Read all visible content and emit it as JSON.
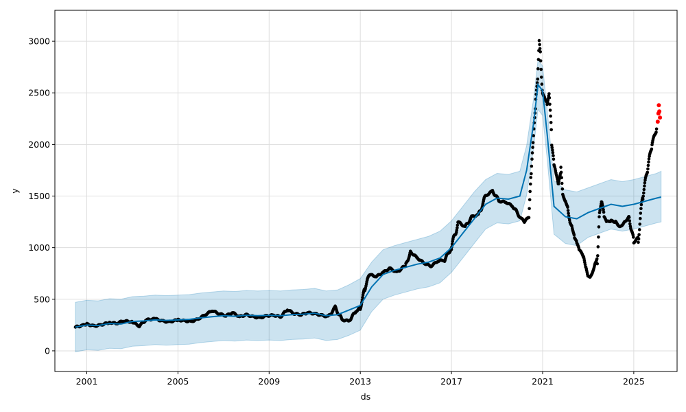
{
  "chart_data": {
    "type": "line",
    "title": "",
    "xlabel": "ds",
    "ylabel": "y",
    "xlim": [
      1999.6,
      2026.9
    ],
    "ylim": [
      -200,
      3300
    ],
    "x_ticks": [
      2001,
      2005,
      2009,
      2013,
      2017,
      2021,
      2025
    ],
    "x_tick_labels": [
      "2001",
      "2005",
      "2009",
      "2013",
      "2017",
      "2021",
      "2025"
    ],
    "y_ticks": [
      0,
      500,
      1000,
      1500,
      2000,
      2500,
      3000
    ],
    "y_tick_labels": [
      "0",
      "500",
      "1000",
      "1500",
      "2000",
      "2500",
      "3000"
    ],
    "grid": true,
    "legend": "none",
    "colors": {
      "observed": "#000000",
      "forecast_line": "#0072B2",
      "uncertainty_band": "#0072B2",
      "recent_points": "#ff0000"
    },
    "series": [
      {
        "role": "forecast_yhat",
        "x": [
          2000.5,
          2001.0,
          2001.5,
          2002.0,
          2002.5,
          2003.0,
          2003.5,
          2004.0,
          2004.5,
          2005.0,
          2005.5,
          2006.0,
          2006.5,
          2007.0,
          2007.5,
          2008.0,
          2008.5,
          2009.0,
          2009.5,
          2010.0,
          2010.5,
          2011.0,
          2011.5,
          2012.0,
          2012.5,
          2013.0,
          2013.5,
          2014.0,
          2014.5,
          2015.0,
          2015.5,
          2016.0,
          2016.5,
          2017.0,
          2017.5,
          2018.0,
          2018.5,
          2019.0,
          2019.5,
          2020.0,
          2020.3,
          2020.6,
          2020.8,
          2021.0,
          2021.2,
          2021.5,
          2022.0,
          2022.5,
          2023.0,
          2023.5,
          2024.0,
          2024.5,
          2025.0,
          2025.5,
          2026.0,
          2026.2
        ],
        "y": [
          230,
          250,
          245,
          265,
          260,
          285,
          290,
          300,
          295,
          300,
          305,
          320,
          330,
          340,
          335,
          345,
          340,
          345,
          340,
          350,
          355,
          365,
          340,
          350,
          395,
          440,
          620,
          740,
          780,
          810,
          840,
          860,
          900,
          1000,
          1140,
          1280,
          1420,
          1480,
          1470,
          1500,
          1750,
          2200,
          2580,
          2520,
          2100,
          1400,
          1300,
          1280,
          1340,
          1380,
          1420,
          1400,
          1420,
          1450,
          1480,
          1490
        ]
      },
      {
        "role": "forecast_upper",
        "x": [
          2000.5,
          2001.0,
          2001.5,
          2002.0,
          2002.5,
          2003.0,
          2003.5,
          2004.0,
          2004.5,
          2005.0,
          2005.5,
          2006.0,
          2006.5,
          2007.0,
          2007.5,
          2008.0,
          2008.5,
          2009.0,
          2009.5,
          2010.0,
          2010.5,
          2011.0,
          2011.5,
          2012.0,
          2012.5,
          2013.0,
          2013.5,
          2014.0,
          2014.5,
          2015.0,
          2015.5,
          2016.0,
          2016.5,
          2017.0,
          2017.5,
          2018.0,
          2018.5,
          2019.0,
          2019.5,
          2020.0,
          2020.3,
          2020.6,
          2020.8,
          2021.0,
          2021.2,
          2021.5,
          2022.0,
          2022.5,
          2023.0,
          2023.5,
          2024.0,
          2024.5,
          2025.0,
          2025.5,
          2026.0,
          2026.2
        ],
        "y": [
          470,
          490,
          485,
          505,
          500,
          525,
          530,
          540,
          535,
          540,
          545,
          560,
          570,
          580,
          575,
          585,
          580,
          585,
          580,
          590,
          595,
          605,
          580,
          590,
          640,
          700,
          860,
          980,
          1020,
          1050,
          1080,
          1110,
          1160,
          1260,
          1400,
          1540,
          1660,
          1720,
          1710,
          1740,
          1990,
          2440,
          2820,
          2760,
          2340,
          1650,
          1560,
          1540,
          1580,
          1620,
          1660,
          1640,
          1660,
          1690,
          1720,
          1740
        ]
      },
      {
        "role": "forecast_lower",
        "x": [
          2000.5,
          2001.0,
          2001.5,
          2002.0,
          2002.5,
          2003.0,
          2003.5,
          2004.0,
          2004.5,
          2005.0,
          2005.5,
          2006.0,
          2006.5,
          2007.0,
          2007.5,
          2008.0,
          2008.5,
          2009.0,
          2009.5,
          2010.0,
          2010.5,
          2011.0,
          2011.5,
          2012.0,
          2012.5,
          2013.0,
          2013.5,
          2014.0,
          2014.5,
          2015.0,
          2015.5,
          2016.0,
          2016.5,
          2017.0,
          2017.5,
          2018.0,
          2018.5,
          2019.0,
          2019.5,
          2020.0,
          2020.3,
          2020.6,
          2020.8,
          2021.0,
          2021.2,
          2021.5,
          2022.0,
          2022.5,
          2023.0,
          2023.5,
          2024.0,
          2024.5,
          2025.0,
          2025.5,
          2026.0,
          2026.2
        ],
        "y": [
          -10,
          10,
          5,
          25,
          20,
          45,
          50,
          60,
          55,
          60,
          65,
          80,
          90,
          100,
          95,
          105,
          100,
          105,
          100,
          110,
          115,
          125,
          100,
          110,
          150,
          200,
          380,
          500,
          540,
          570,
          600,
          620,
          660,
          760,
          900,
          1040,
          1180,
          1240,
          1230,
          1260,
          1510,
          1960,
          2340,
          2280,
          1860,
          1130,
          1040,
          1020,
          1100,
          1140,
          1180,
          1160,
          1180,
          1210,
          1240,
          1250
        ]
      },
      {
        "role": "observed",
        "x": [
          2000.5,
          2000.8,
          2001.0,
          2001.3,
          2001.6,
          2002.0,
          2002.3,
          2002.6,
          2003.0,
          2003.3,
          2003.6,
          2004.0,
          2004.3,
          2004.6,
          2005.0,
          2005.3,
          2005.6,
          2005.9,
          2006.2,
          2006.5,
          2006.8,
          2007.1,
          2007.4,
          2007.7,
          2008.0,
          2008.3,
          2008.6,
          2008.9,
          2009.2,
          2009.5,
          2009.8,
          2010.1,
          2010.4,
          2010.7,
          2011.0,
          2011.3,
          2011.6,
          2011.9,
          2012.2,
          2012.5,
          2012.8,
          2013.0,
          2013.2,
          2013.4,
          2013.7,
          2014.0,
          2014.3,
          2014.6,
          2015.0,
          2015.2,
          2015.5,
          2015.8,
          2016.1,
          2016.4,
          2016.7,
          2017.0,
          2017.3,
          2017.6,
          2017.9,
          2018.2,
          2018.5,
          2018.8,
          2019.1,
          2019.4,
          2019.7,
          2020.0,
          2020.2,
          2020.4,
          2020.5,
          2020.6,
          2020.7,
          2020.8,
          2020.85,
          2020.9,
          2021.0,
          2021.1,
          2021.2,
          2021.3,
          2021.4,
          2021.5,
          2021.6,
          2021.7,
          2021.8,
          2021.9,
          2022.0,
          2022.1,
          2022.2,
          2022.3,
          2022.4,
          2022.5,
          2022.6,
          2022.7,
          2022.8,
          2022.9,
          2023.0,
          2023.1,
          2023.2,
          2023.3,
          2023.4,
          2023.5,
          2023.6,
          2023.7,
          2023.8,
          2024.0,
          2024.2,
          2024.4,
          2024.6,
          2024.8,
          2025.0,
          2025.2,
          2025.4,
          2025.6,
          2025.8,
          2026.0
        ],
        "y": [
          230,
          245,
          260,
          240,
          250,
          275,
          265,
          290,
          280,
          240,
          300,
          310,
          290,
          280,
          300,
          290,
          285,
          310,
          350,
          390,
          360,
          340,
          370,
          330,
          350,
          330,
          320,
          340,
          345,
          330,
          400,
          360,
          350,
          370,
          360,
          345,
          330,
          420,
          300,
          290,
          380,
          420,
          600,
          740,
          720,
          760,
          800,
          760,
          830,
          960,
          900,
          850,
          820,
          870,
          880,
          1000,
          1250,
          1200,
          1300,
          1320,
          1500,
          1550,
          1450,
          1440,
          1400,
          1300,
          1250,
          1300,
          1700,
          2050,
          2400,
          2700,
          3000,
          2900,
          2500,
          2450,
          2400,
          2500,
          2000,
          1800,
          1700,
          1600,
          1750,
          1500,
          1450,
          1400,
          1250,
          1200,
          1100,
          1050,
          980,
          950,
          900,
          800,
          720,
          720,
          770,
          850,
          900,
          1350,
          1450,
          1300,
          1250,
          1260,
          1250,
          1200,
          1250,
          1300,
          1050,
          1100,
          1500,
          1750,
          2000,
          2150
        ]
      },
      {
        "role": "recent_points",
        "x": [
          2026.05,
          2026.08,
          2026.1,
          2026.12,
          2026.15
        ],
        "y": [
          2220,
          2300,
          2380,
          2320,
          2260
        ]
      }
    ]
  }
}
